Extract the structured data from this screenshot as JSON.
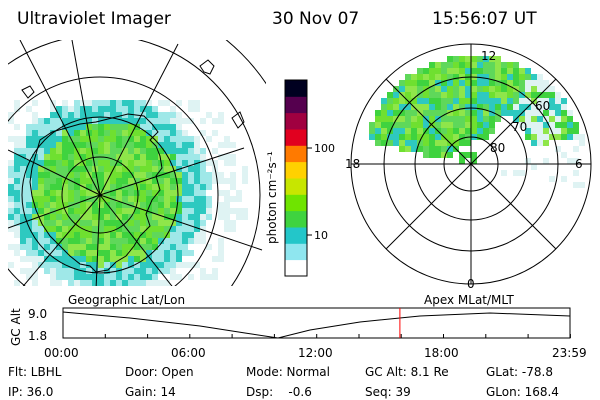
{
  "header": {
    "title": "Ultraviolet Imager",
    "date": "30 Nov 07",
    "time": "15:56:07 UT"
  },
  "colorbar": {
    "unit": "photon cm⁻²s⁻¹",
    "ticks": [
      "100",
      "10"
    ],
    "colors": [
      "#ffffff",
      "#8fe6ef",
      "#23c6c9",
      "#3fd33f",
      "#6fe400",
      "#c7e600",
      "#ffd100",
      "#ff7a00",
      "#e1001f",
      "#a00040",
      "#55004e",
      "#000020"
    ]
  },
  "geo_panel": {
    "label": "Geographic Lat/Lon"
  },
  "mag_panel": {
    "label": "Apex MLat/MLT",
    "mlt": {
      "top": "12",
      "left": "18",
      "right": "6",
      "bottom": "0"
    },
    "mlat": [
      "60",
      "70",
      "80"
    ]
  },
  "timeline": {
    "ylabel": "GC Alt",
    "yticks": [
      "9.0",
      "1.8"
    ],
    "xticks": [
      "00:00",
      "06:00",
      "12:00",
      "18:00",
      "23:59"
    ],
    "marker_hours": 15.935,
    "orbit_color": "#000000",
    "marker_color": "#ff0000"
  },
  "info": {
    "row1": [
      "Flt: LBHL",
      "Door: Open",
      "Mode: Normal",
      "GC Alt: 8.1 Re",
      "GLat: -78.8"
    ],
    "row2": [
      "IP: 36.0",
      "Gain: 14",
      "Dsp:    -0.6",
      "Seq: 39",
      "GLon: 168.4"
    ]
  }
}
